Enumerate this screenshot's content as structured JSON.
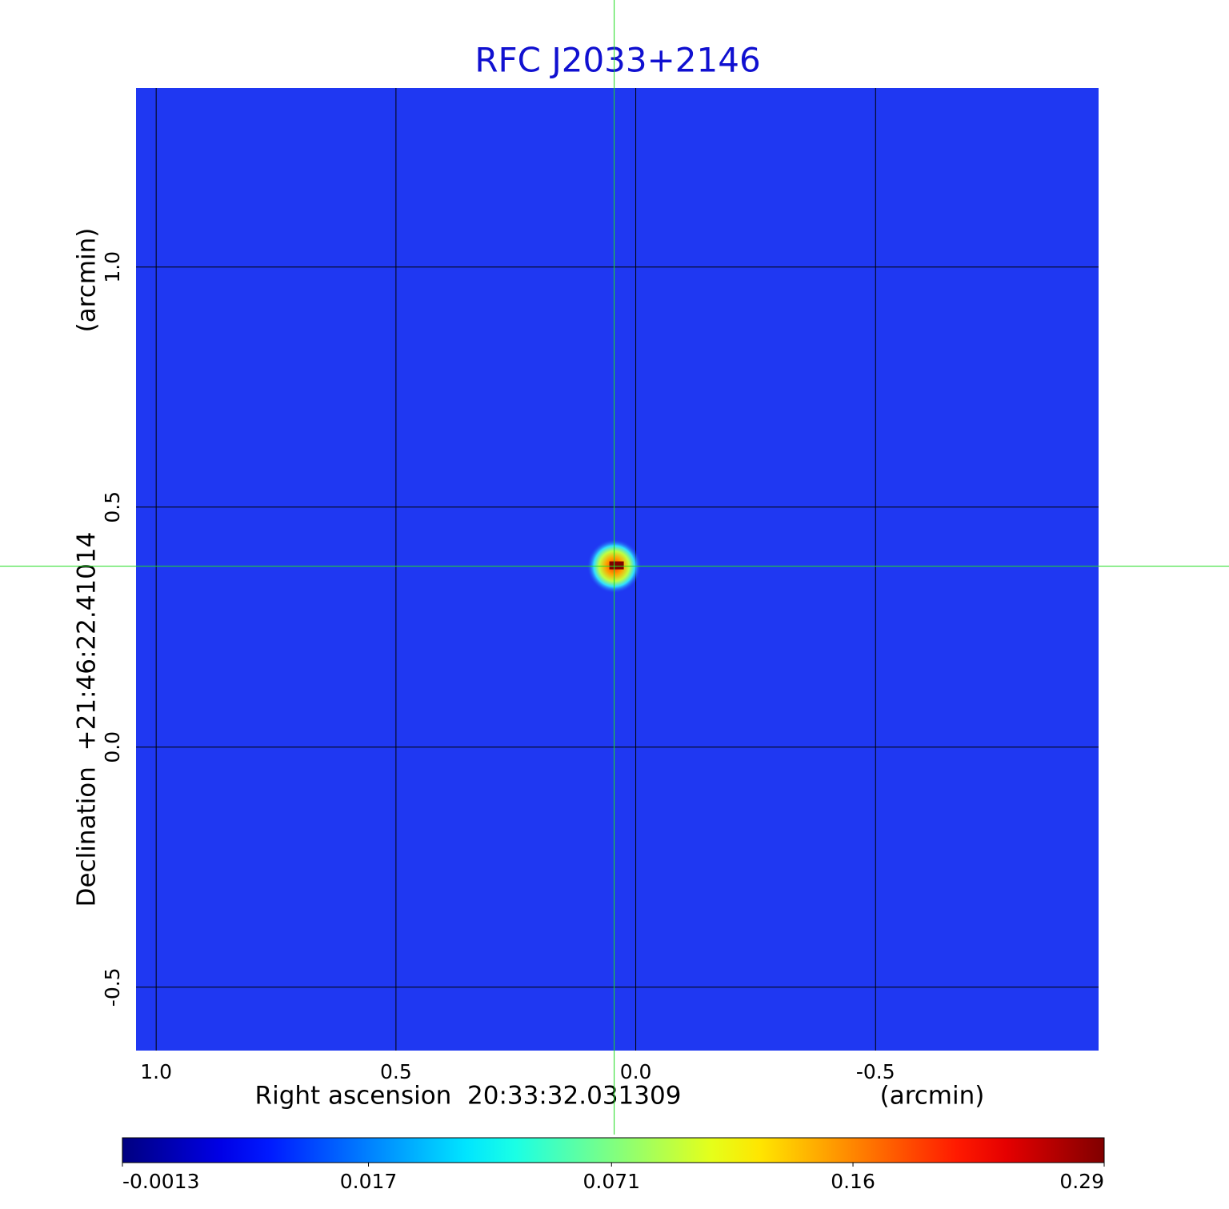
{
  "chart_data": {
    "type": "image",
    "title": "RFC J2033+2146",
    "x_label": "Right ascension  20:33:32.031309",
    "x_unit": "(arcmin)",
    "y_label": "Declination  +21:46:22.41014",
    "y_unit": "(arcmin)",
    "xlim": [
      1.042,
      -0.965
    ],
    "ylim": [
      -0.632,
      1.373
    ],
    "xticks": [
      {
        "value": 1,
        "label": "1.0"
      },
      0.5,
      {
        "value": 0,
        "label": "0.0"
      },
      -0.5
    ],
    "yticks": [
      -0.5,
      {
        "value": 0,
        "label": "0.0"
      },
      0.5,
      {
        "value": 1,
        "label": "1.0"
      }
    ],
    "grid": true,
    "colormap": "jet",
    "peak": {
      "x": 0.045,
      "y": 0.377,
      "value": 0.29
    },
    "colorbar": {
      "scale": "sqrt",
      "lim": [
        -0.0013,
        0.29
      ],
      "ticks": [
        -0.0013,
        0.017,
        0.071,
        0.16,
        0.29
      ]
    }
  }
}
